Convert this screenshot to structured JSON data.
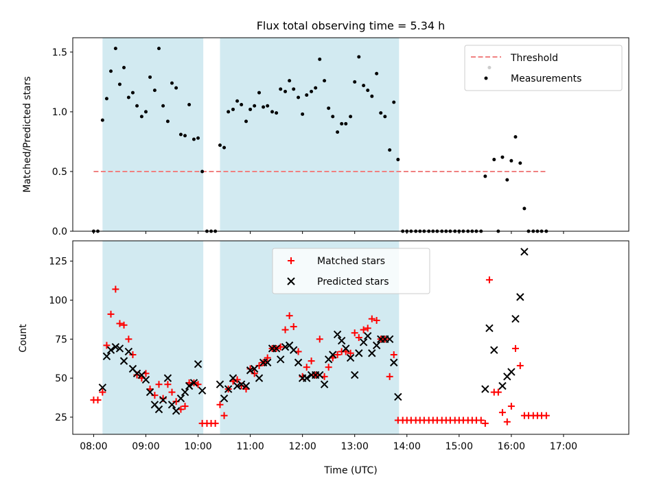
{
  "chart_data": [
    {
      "type": "scatter",
      "title": "Flux total observing time = 5.34 h",
      "ylabel": "Matched/Predicted stars",
      "xlim": [
        7.6,
        18.25
      ],
      "ylim": [
        0,
        1.62
      ],
      "yticks": [
        0.0,
        0.5,
        1.0,
        1.5
      ],
      "ytick_labels": [
        "0.0",
        "0.5",
        "1.0",
        "1.5"
      ],
      "shaded_intervals": [
        [
          8.17,
          10.1
        ],
        [
          10.42,
          13.85
        ]
      ],
      "colors": {
        "shade": "#add8e6",
        "threshold": "#f08080",
        "points": "#000000"
      },
      "legend": {
        "position": "top-right",
        "threshold_label": "Threshold",
        "measurements_label": "Measurements"
      },
      "threshold": {
        "value": 0.5,
        "x_range": [
          8.0,
          16.67
        ]
      },
      "series": [
        {
          "name": "Measurements",
          "x": [
            8.0,
            8.08,
            8.17,
            8.25,
            8.33,
            8.42,
            8.5,
            8.58,
            8.67,
            8.75,
            8.83,
            8.92,
            9.0,
            9.08,
            9.17,
            9.25,
            9.33,
            9.42,
            9.5,
            9.58,
            9.67,
            9.75,
            9.83,
            9.92,
            10.0,
            10.08,
            10.17,
            10.25,
            10.33,
            10.42,
            10.5,
            10.58,
            10.67,
            10.75,
            10.83,
            10.92,
            11.0,
            11.08,
            11.17,
            11.25,
            11.33,
            11.42,
            11.5,
            11.58,
            11.67,
            11.75,
            11.83,
            11.92,
            12.0,
            12.08,
            12.17,
            12.25,
            12.33,
            12.42,
            12.5,
            12.58,
            12.67,
            12.75,
            12.83,
            12.92,
            13.0,
            13.08,
            13.17,
            13.25,
            13.33,
            13.42,
            13.5,
            13.58,
            13.67,
            13.75,
            13.83,
            13.92,
            14.0,
            14.08,
            14.17,
            14.25,
            14.33,
            14.42,
            14.5,
            14.58,
            14.67,
            14.75,
            14.83,
            14.92,
            15.0,
            15.08,
            15.17,
            15.25,
            15.33,
            15.42,
            15.5,
            15.58,
            15.67,
            15.75,
            15.83,
            15.92,
            16.0,
            16.08,
            16.17,
            16.25,
            16.33,
            16.42,
            16.5,
            16.58,
            16.67
          ],
          "y": [
            0,
            0,
            0.93,
            1.11,
            1.34,
            1.53,
            1.23,
            1.37,
            1.12,
            1.16,
            1.05,
            0.96,
            1.0,
            1.29,
            1.18,
            1.53,
            1.05,
            0.92,
            1.24,
            1.2,
            0.81,
            0.8,
            1.06,
            0.77,
            0.78,
            0.5,
            0,
            0,
            0,
            0.72,
            0.7,
            1.0,
            1.02,
            1.09,
            1.06,
            0.92,
            1.02,
            1.05,
            1.16,
            1.04,
            1.05,
            1.0,
            0.99,
            1.19,
            1.17,
            1.26,
            1.19,
            1.12,
            0.98,
            1.14,
            1.17,
            1.2,
            1.44,
            1.26,
            1.03,
            0.96,
            0.83,
            0.9,
            0.9,
            0.96,
            1.25,
            1.46,
            1.22,
            1.18,
            1.13,
            1.32,
            0.99,
            0.96,
            0.68,
            1.08,
            0.6,
            0,
            0,
            0,
            0,
            0,
            0,
            0,
            0,
            0,
            0,
            0,
            0,
            0,
            0,
            0,
            0,
            0,
            0,
            0,
            0.46,
            1.37,
            0.6,
            0,
            0.62,
            0.43,
            0.59,
            0.79,
            0.57,
            0.19,
            0,
            0,
            0,
            0,
            0
          ]
        }
      ]
    },
    {
      "type": "scatter",
      "xlabel": "Time (UTC)",
      "ylabel": "Count",
      "xlim": [
        7.6,
        18.25
      ],
      "ylim": [
        14,
        138
      ],
      "yticks": [
        25,
        50,
        75,
        100,
        125
      ],
      "ytick_labels": [
        "25",
        "50",
        "75",
        "100",
        "125"
      ],
      "xticks": [
        8,
        9,
        10,
        11,
        12,
        13,
        14,
        15,
        16,
        17
      ],
      "xtick_labels": [
        "08:00",
        "09:00",
        "10:00",
        "11:00",
        "12:00",
        "13:00",
        "14:00",
        "15:00",
        "16:00",
        "17:00"
      ],
      "shaded_intervals": [
        [
          8.17,
          10.1
        ],
        [
          10.42,
          13.85
        ]
      ],
      "colors": {
        "shade": "#add8e6",
        "matched": "#ff0000",
        "predicted": "#000000"
      },
      "legend": {
        "position": "top-center",
        "matched_label": "Matched stars",
        "predicted_label": "Predicted stars"
      },
      "series": [
        {
          "name": "Matched stars",
          "marker": "plus",
          "x": [
            8.0,
            8.08,
            8.17,
            8.25,
            8.33,
            8.42,
            8.5,
            8.58,
            8.67,
            8.75,
            8.83,
            8.92,
            9.0,
            9.08,
            9.17,
            9.25,
            9.33,
            9.42,
            9.5,
            9.58,
            9.67,
            9.75,
            9.83,
            9.92,
            10.0,
            10.08,
            10.17,
            10.25,
            10.33,
            10.42,
            10.5,
            10.58,
            10.67,
            10.75,
            10.83,
            10.92,
            11.0,
            11.08,
            11.17,
            11.25,
            11.33,
            11.42,
            11.5,
            11.58,
            11.67,
            11.75,
            11.83,
            11.92,
            12.0,
            12.08,
            12.17,
            12.25,
            12.33,
            12.42,
            12.5,
            12.58,
            12.67,
            12.75,
            12.83,
            12.92,
            13.0,
            13.08,
            13.17,
            13.25,
            13.33,
            13.42,
            13.5,
            13.58,
            13.67,
            13.75,
            13.83,
            13.92,
            14.0,
            14.08,
            14.17,
            14.25,
            14.33,
            14.42,
            14.5,
            14.58,
            14.67,
            14.75,
            14.83,
            14.92,
            15.0,
            15.08,
            15.17,
            15.25,
            15.33,
            15.42,
            15.5,
            15.58,
            15.67,
            15.75,
            15.83,
            15.92,
            16.0,
            16.08,
            16.17,
            16.25,
            16.33,
            16.42,
            16.5,
            16.58,
            16.67
          ],
          "y": [
            36,
            36,
            41,
            71,
            91,
            107,
            85,
            84,
            75,
            65,
            52,
            50,
            53,
            43,
            39,
            46,
            37,
            46,
            41,
            35,
            30,
            32,
            47,
            47,
            46,
            21,
            21,
            21,
            21,
            33,
            26,
            43,
            48,
            49,
            45,
            43,
            56,
            53,
            58,
            60,
            63,
            69,
            69,
            70,
            81,
            90,
            83,
            67,
            51,
            57,
            61,
            52,
            75,
            51,
            57,
            63,
            65,
            67,
            67,
            66,
            79,
            76,
            81,
            82,
            88,
            87,
            75,
            75,
            51,
            65,
            23,
            23,
            23,
            23,
            23,
            23,
            23,
            23,
            23,
            23,
            23,
            23,
            23,
            23,
            23,
            23,
            23,
            23,
            23,
            23,
            21,
            113,
            41,
            41,
            28,
            22,
            32,
            69,
            58,
            26,
            26,
            26,
            26,
            26,
            26
          ]
        },
        {
          "name": "Predicted stars",
          "marker": "x",
          "x": [
            8.17,
            8.25,
            8.33,
            8.42,
            8.5,
            8.58,
            8.67,
            8.75,
            8.83,
            8.92,
            9.0,
            9.08,
            9.17,
            9.25,
            9.33,
            9.42,
            9.5,
            9.58,
            9.67,
            9.75,
            9.83,
            9.92,
            10.0,
            10.08,
            10.42,
            10.5,
            10.58,
            10.67,
            10.75,
            10.83,
            10.92,
            11.0,
            11.08,
            11.17,
            11.25,
            11.33,
            11.42,
            11.5,
            11.58,
            11.67,
            11.75,
            11.83,
            11.92,
            12.0,
            12.08,
            12.17,
            12.25,
            12.33,
            12.42,
            12.5,
            12.58,
            12.67,
            12.75,
            12.83,
            12.92,
            13.0,
            13.08,
            13.17,
            13.25,
            13.33,
            13.42,
            13.5,
            13.58,
            13.67,
            13.75,
            13.83,
            15.5,
            15.58,
            15.67,
            15.83,
            15.92,
            16.0,
            16.08,
            16.17,
            16.25
          ],
          "y": [
            44,
            64,
            68,
            70,
            69,
            61,
            67,
            56,
            53,
            52,
            49,
            41,
            33,
            30,
            36,
            50,
            33,
            29,
            37,
            41,
            45,
            47,
            59,
            42,
            46,
            37,
            43,
            50,
            45,
            46,
            45,
            55,
            56,
            50,
            60,
            60,
            69,
            69,
            62,
            70,
            71,
            68,
            60,
            50,
            50,
            52,
            52,
            52,
            46,
            62,
            65,
            78,
            74,
            69,
            63,
            52,
            66,
            73,
            77,
            66,
            71,
            75,
            75,
            75,
            60,
            38,
            43,
            82,
            68,
            45,
            51,
            54,
            88,
            102,
            131
          ]
        }
      ]
    }
  ]
}
